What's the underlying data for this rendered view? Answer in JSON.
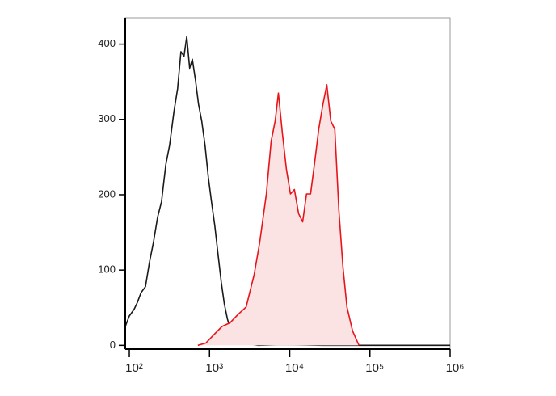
{
  "chart_data": {
    "type": "line",
    "xscale": "log",
    "xlim": [
      89,
      1000000
    ],
    "ylim": [
      -5,
      435
    ],
    "xticks": [
      {
        "value": 100,
        "label": "10²"
      },
      {
        "value": 1000,
        "label": "10³"
      },
      {
        "value": 10000,
        "label": "10⁴"
      },
      {
        "value": 100000,
        "label": "10⁵"
      },
      {
        "value": 1000000,
        "label": "10⁶"
      }
    ],
    "yticks": [
      0,
      100,
      200,
      300,
      400
    ],
    "series": [
      {
        "color": "#1a1a1a",
        "fill": null,
        "x": [
          89,
          100,
          115,
          126,
          140,
          159,
          178,
          200,
          225,
          252,
          285,
          318,
          360,
          400,
          440,
          481,
          520,
          566,
          610,
          668,
          730,
          800,
          880,
          966,
          1060,
          1165,
          1280,
          1400,
          1530,
          1670,
          1840,
          2010,
          2250,
          2550,
          3000,
          4050,
          8000,
          25700,
          100000,
          1000000
        ],
        "values": [
          25,
          39,
          48,
          57,
          70,
          78,
          110,
          137,
          170,
          191,
          240,
          266,
          310,
          341,
          390,
          384,
          410,
          368,
          380,
          352,
          320,
          298,
          265,
          223,
          190,
          159,
          120,
          84,
          55,
          35,
          20,
          14,
          8,
          3,
          2,
          0,
          1,
          0,
          0,
          0
        ]
      },
      {
        "color": "#e8141a",
        "fill": "#fbe3e4",
        "x": [
          715,
          900,
          1130,
          1430,
          1800,
          2270,
          2860,
          3600,
          4230,
          5110,
          5860,
          6580,
          7220,
          8100,
          9090,
          10200,
          11450,
          12900,
          14500,
          16200,
          18200,
          20500,
          23000,
          25800,
          29000,
          32500,
          36500,
          41000,
          46000,
          51700,
          60800,
          73000
        ],
        "values": [
          0,
          3,
          14,
          25,
          30,
          41,
          51,
          94,
          137,
          201,
          271,
          298,
          335,
          282,
          234,
          201,
          207,
          175,
          164,
          201,
          201,
          244,
          287,
          319,
          346,
          298,
          287,
          180,
          105,
          51,
          19,
          0
        ]
      }
    ]
  }
}
